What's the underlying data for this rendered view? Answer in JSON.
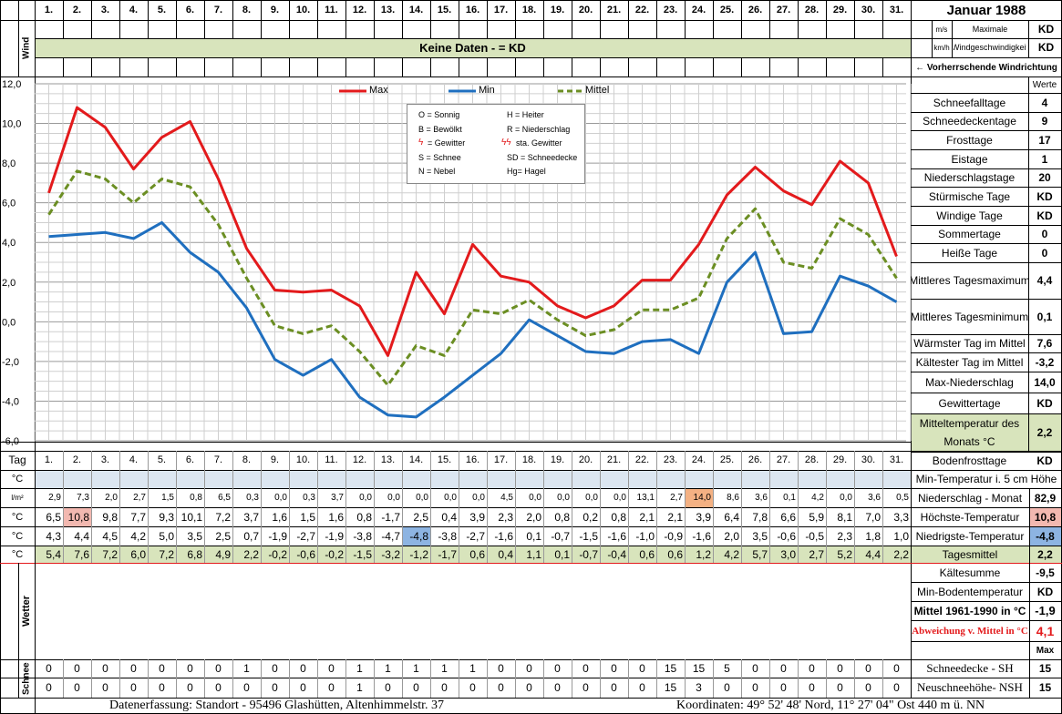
{
  "header": {
    "title": "Januar 1988",
    "days": [
      "1.",
      "2.",
      "3.",
      "4.",
      "5.",
      "6.",
      "7.",
      "8.",
      "9.",
      "10.",
      "11.",
      "12.",
      "13.",
      "14.",
      "15.",
      "16.",
      "17.",
      "18.",
      "19.",
      "20.",
      "21.",
      "22.",
      "23.",
      "24.",
      "25.",
      "26.",
      "27.",
      "28.",
      "29.",
      "30.",
      "31."
    ],
    "wind_label": "Wind",
    "unit_ms": "m/s",
    "unit_kmh": "km/h",
    "max_wind_label_1": "Maximale",
    "max_wind_label_2": "Windgeschwindigkeit",
    "wind_kd1": "KD",
    "wind_kd2": "KD",
    "no_data": "Keine Daten -  = KD",
    "wind_dir": "← Vorherrschende Windrichtung",
    "tag_label": "Tag"
  },
  "legend": {
    "max": "Max",
    "min": "Min",
    "mittel": "Mittel",
    "weather_codes": [
      [
        "O = Sonnig",
        "H = Heiter"
      ],
      [
        "B = Bewölkt",
        "R = Niederschlag"
      ],
      [
        "= Gewitter",
        "sta. Gewitter"
      ],
      [
        "S = Schnee",
        "SD = Schneedecke"
      ],
      [
        "N = Nebel",
        "Hg= Hagel"
      ]
    ]
  },
  "stats": {
    "werte_header": "Werte",
    "rows": [
      {
        "label": "Schneefalltage",
        "value": "4"
      },
      {
        "label": "Schneedeckentage",
        "value": "9"
      },
      {
        "label": "Frosttage",
        "value": "17"
      },
      {
        "label": "Eistage",
        "value": "1"
      },
      {
        "label": "Niederschlagstage",
        "value": "20"
      },
      {
        "label": "Stürmische Tage",
        "value": "KD"
      },
      {
        "label": "Windige Tage",
        "value": "KD"
      },
      {
        "label": "Sommertage",
        "value": "0"
      },
      {
        "label": "Heiße Tage",
        "value": "0"
      },
      {
        "label": "Mittleres Tagesmaximum",
        "value": "4,4"
      },
      {
        "label": "Mittleres Tagesminimum",
        "value": "0,1"
      },
      {
        "label": "Wärmster Tag im Mittel",
        "value": "7,6"
      },
      {
        "label": "Kältester Tag im Mittel",
        "value": "-3,2"
      },
      {
        "label": "Max-Niederschlag",
        "value": "14,0"
      },
      {
        "label": "Gewittertage",
        "value": "KD"
      },
      {
        "label": "Mitteltemperatur des Monats °C",
        "value": "2,2"
      },
      {
        "label": "Bodenfrosttage",
        "value": "KD"
      }
    ]
  },
  "table": {
    "units": [
      "°C",
      "l/m²",
      "°C",
      "°C",
      "°C"
    ],
    "soil_min_temp_label": "Min-Temperatur i. 5 cm Höhe",
    "precip": [
      "2,9",
      "7,3",
      "2,0",
      "2,7",
      "1,5",
      "0,8",
      "6,5",
      "0,3",
      "0,0",
      "0,3",
      "3,7",
      "0,0",
      "0,0",
      "0,0",
      "0,0",
      "0,0",
      "4,5",
      "0,0",
      "0,0",
      "0,0",
      "0,0",
      "13,1",
      "2,7",
      "14,0",
      "8,6",
      "3,6",
      "0,1",
      "4,2",
      "0,0",
      "3,6",
      "0,5"
    ],
    "tmax": [
      "6,5",
      "10,8",
      "9,8",
      "7,7",
      "9,3",
      "10,1",
      "7,2",
      "3,7",
      "1,6",
      "1,5",
      "1,6",
      "0,8",
      "-1,7",
      "2,5",
      "0,4",
      "3,9",
      "2,3",
      "2,0",
      "0,8",
      "0,2",
      "0,8",
      "2,1",
      "2,1",
      "3,9",
      "6,4",
      "7,8",
      "6,6",
      "5,9",
      "8,1",
      "7,0",
      "3,3"
    ],
    "tmin": [
      "4,3",
      "4,4",
      "4,5",
      "4,2",
      "5,0",
      "3,5",
      "2,5",
      "0,7",
      "-1,9",
      "-2,7",
      "-1,9",
      "-3,8",
      "-4,7",
      "-4,8",
      "-3,8",
      "-2,7",
      "-1,6",
      "0,1",
      "-0,7",
      "-1,5",
      "-1,6",
      "-1,0",
      "-0,9",
      "-1,6",
      "2,0",
      "3,5",
      "-0,6",
      "-0,5",
      "2,3",
      "1,8",
      "1,0"
    ],
    "tmean": [
      "5,4",
      "7,6",
      "7,2",
      "6,0",
      "7,2",
      "6,8",
      "4,9",
      "2,2",
      "-0,2",
      "-0,6",
      "-0,2",
      "-1,5",
      "-3,2",
      "-1,2",
      "-1,7",
      "0,6",
      "0,4",
      "1,1",
      "0,1",
      "-0,7",
      "-0,4",
      "0,6",
      "0,6",
      "1,2",
      "4,2",
      "5,7",
      "3,0",
      "2,7",
      "5,2",
      "4,4",
      "2,2"
    ],
    "summary": [
      {
        "label": "Niederschlag - Monat",
        "value": "82,9"
      },
      {
        "label": "Höchste-Temperatur",
        "value": "10,8"
      },
      {
        "label": "Niedrigste-Temperatur",
        "value": "-4,8"
      },
      {
        "label": "Tagesmittel",
        "value": "2,2"
      },
      {
        "label": "Kältesumme",
        "value": "-9,5"
      },
      {
        "label": "Min-Bodentemperatur",
        "value": "KD"
      },
      {
        "label": "Mittel 1961-1990 in °C",
        "value": "-1,9"
      },
      {
        "label": "Abweichung v. Mittel in °C",
        "value": "4,1"
      }
    ],
    "wetter_label": "Wetter",
    "schnee_label": "Schnee",
    "max_header": "Max",
    "snow_sh": [
      "0",
      "0",
      "0",
      "0",
      "0",
      "0",
      "0",
      "1",
      "0",
      "0",
      "0",
      "1",
      "1",
      "1",
      "1",
      "1",
      "0",
      "0",
      "0",
      "0",
      "0",
      "0",
      "15",
      "15",
      "5",
      "0",
      "0",
      "0",
      "0",
      "0",
      "0"
    ],
    "snow_nsh": [
      "0",
      "0",
      "0",
      "0",
      "0",
      "0",
      "0",
      "0",
      "0",
      "0",
      "0",
      "1",
      "0",
      "0",
      "0",
      "0",
      "0",
      "0",
      "0",
      "0",
      "0",
      "0",
      "15",
      "3",
      "0",
      "0",
      "0",
      "0",
      "0",
      "0",
      "0"
    ],
    "sh_label": "Schneedecke -   SH",
    "sh_max": "15",
    "nsh_label": "Neuschneehöhe- NSH",
    "nsh_max": "15"
  },
  "footer": {
    "left": "Datenerfassung:  Standort -   95496  Glashütten, Altenhimmelstr. 37",
    "right": "Koordinaten:  49° 52' 48' Nord,  11° 27' 04\" Ost   440 m ü. NN"
  },
  "chart_data": {
    "type": "line",
    "x": [
      1,
      2,
      3,
      4,
      5,
      6,
      7,
      8,
      9,
      10,
      11,
      12,
      13,
      14,
      15,
      16,
      17,
      18,
      19,
      20,
      21,
      22,
      23,
      24,
      25,
      26,
      27,
      28,
      29,
      30,
      31
    ],
    "ylim": [
      -6,
      12
    ],
    "yticks": [
      "12,0",
      "10,0",
      "8,0",
      "6,0",
      "4,0",
      "2,0",
      "0,0",
      "-2,0",
      "-4,0",
      "-6,0"
    ],
    "grid": true,
    "legend_position": "top",
    "series": [
      {
        "name": "Max",
        "color": "#e31a1c",
        "dash": false,
        "values": [
          6.5,
          10.8,
          9.8,
          7.7,
          9.3,
          10.1,
          7.2,
          3.7,
          1.6,
          1.5,
          1.6,
          0.8,
          -1.7,
          2.5,
          0.4,
          3.9,
          2.3,
          2.0,
          0.8,
          0.2,
          0.8,
          2.1,
          2.1,
          3.9,
          6.4,
          7.8,
          6.6,
          5.9,
          8.1,
          7.0,
          3.3
        ]
      },
      {
        "name": "Min",
        "color": "#1f6fbf",
        "dash": false,
        "values": [
          4.3,
          4.4,
          4.5,
          4.2,
          5.0,
          3.5,
          2.5,
          0.7,
          -1.9,
          -2.7,
          -1.9,
          -3.8,
          -4.7,
          -4.8,
          -3.8,
          -2.7,
          -1.6,
          0.1,
          -0.7,
          -1.5,
          -1.6,
          -1.0,
          -0.9,
          -1.6,
          2.0,
          3.5,
          -0.6,
          -0.5,
          2.3,
          1.8,
          1.0
        ]
      },
      {
        "name": "Mittel",
        "color": "#6b8e23",
        "dash": true,
        "values": [
          5.4,
          7.6,
          7.2,
          6.0,
          7.2,
          6.8,
          4.9,
          2.2,
          -0.2,
          -0.6,
          -0.2,
          -1.5,
          -3.2,
          -1.2,
          -1.7,
          0.6,
          0.4,
          1.1,
          0.1,
          -0.7,
          -0.4,
          0.6,
          0.6,
          1.2,
          4.2,
          5.7,
          3.0,
          2.7,
          5.2,
          4.4,
          2.2
        ]
      }
    ]
  }
}
